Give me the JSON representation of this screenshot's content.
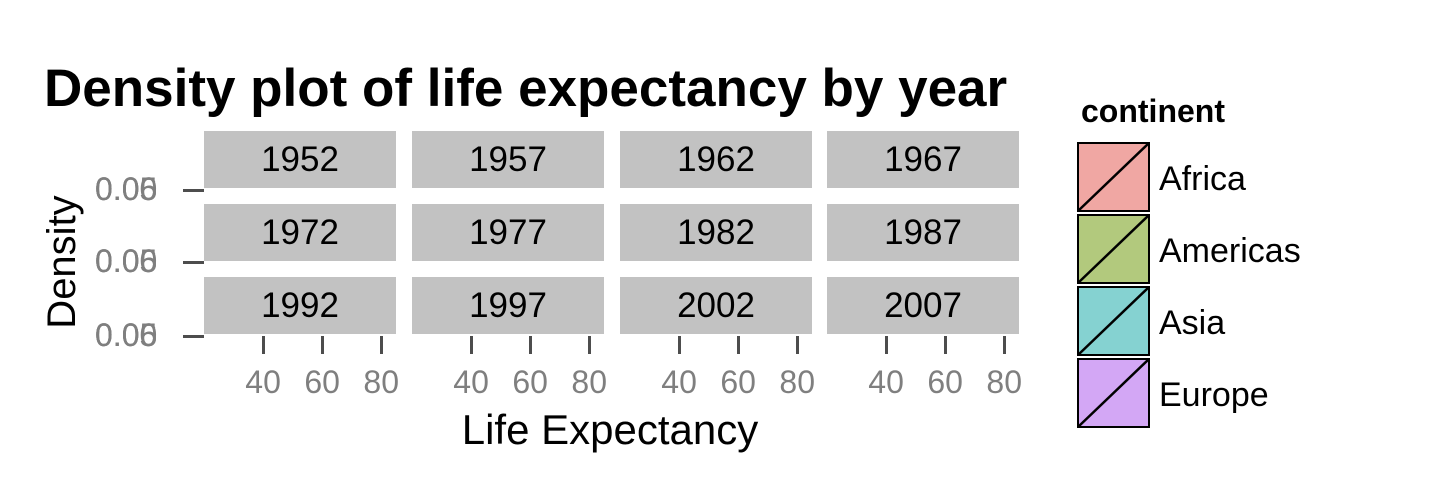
{
  "chart_data": {
    "type": "area",
    "title": "Density plot of life expectancy by year",
    "xlabel": "Life Expectancy",
    "ylabel": "Density",
    "facets": [
      "1952",
      "1957",
      "1962",
      "1967",
      "1972",
      "1977",
      "1982",
      "1987",
      "1992",
      "1997",
      "2002",
      "2007"
    ],
    "facet_layout": "3 rows x 4 columns",
    "x_ticks": [
      "40",
      "60",
      "80"
    ],
    "y_tick_labels_overlapping": [
      "0.00",
      "0.05",
      "0.06"
    ],
    "legend": {
      "title": "continent",
      "entries": [
        {
          "label": "Africa",
          "color": "#f0a7a3"
        },
        {
          "label": "Americas",
          "color": "#b2c97d"
        },
        {
          "label": "Asia",
          "color": "#85d2d1"
        },
        {
          "label": "Europe",
          "color": "#d3a7f5"
        }
      ],
      "placement": "right"
    },
    "grid": false
  }
}
